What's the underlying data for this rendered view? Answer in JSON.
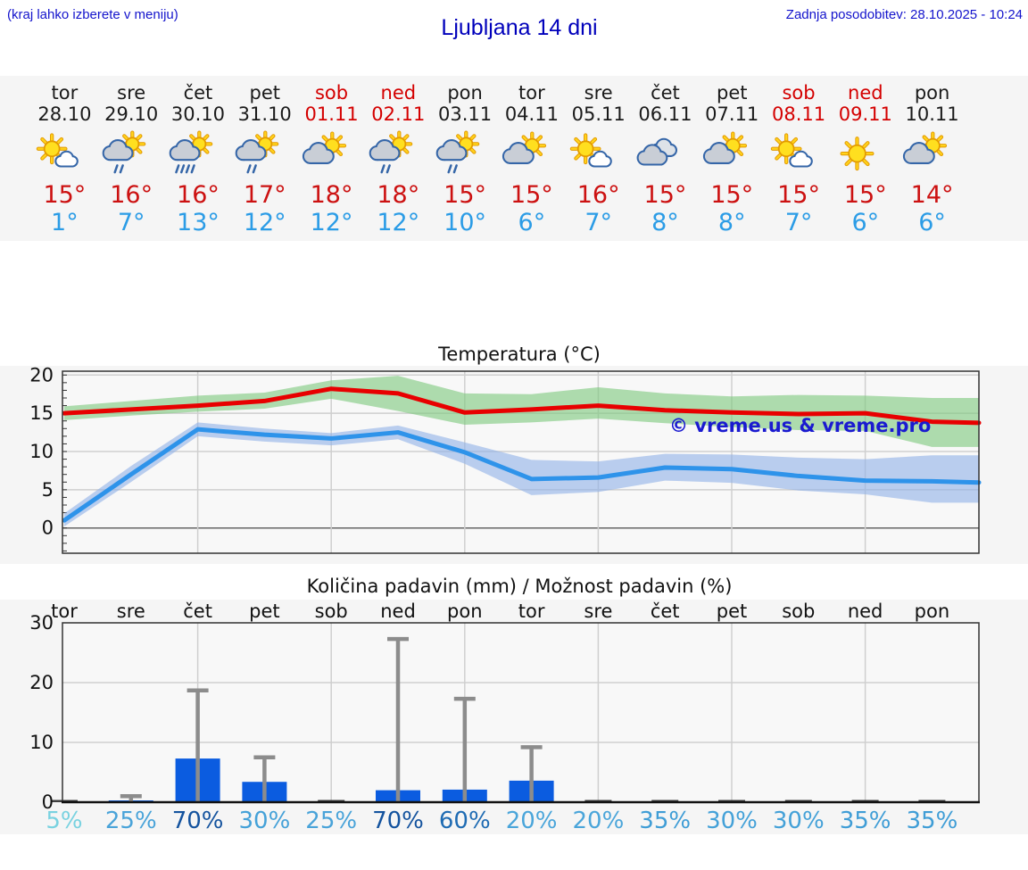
{
  "header": {
    "note_left": "(kraj lahko izberete v meniju)",
    "title": "Ljubljana 14 dni",
    "updated": "Zadnja posodobitev: 28.10.2025 - 10:24"
  },
  "colors": {
    "accent_blue": "#1414cc",
    "temp_max_red": "#e80000",
    "temp_min_blue": "#2e93ea",
    "band_green": "#7cc87c",
    "band_blue": "#8fb0e8",
    "bar_blue": "#0b5ce0",
    "error_gray": "#8c8c8c",
    "weekend_red": "#d40000",
    "strip_bg": "#f5f5f5",
    "plot_bg": "#f8f8f8"
  },
  "days": [
    {
      "name": "tor",
      "date": "28.10",
      "weekend": false,
      "icon": "sun-cloud",
      "tmax": "15°",
      "tmin": "1°",
      "precip_mm": 0.05,
      "precip_err": 0,
      "prob": "5%",
      "prob_color": "#79d2e0"
    },
    {
      "name": "sre",
      "date": "29.10",
      "weekend": false,
      "icon": "cloud-sun-rain",
      "tmax": "16°",
      "tmin": "7°",
      "precip_mm": 0.25,
      "precip_err": 1.0,
      "prob": "25%",
      "prob_color": "#49a3d9"
    },
    {
      "name": "čet",
      "date": "30.10",
      "weekend": false,
      "icon": "cloud-sun-rain-heavy",
      "tmax": "16°",
      "tmin": "13°",
      "precip_mm": 7.3,
      "precip_err": 18.7,
      "prob": "70%",
      "prob_color": "#14539e"
    },
    {
      "name": "pet",
      "date": "31.10",
      "weekend": false,
      "icon": "cloud-sun-rain",
      "tmax": "17°",
      "tmin": "12°",
      "precip_mm": 3.4,
      "precip_err": 7.5,
      "prob": "30%",
      "prob_color": "#44a1d8"
    },
    {
      "name": "sob",
      "date": "01.11",
      "weekend": true,
      "icon": "cloud-sun",
      "tmax": "18°",
      "tmin": "12°",
      "precip_mm": 0.1,
      "precip_err": 0,
      "prob": "25%",
      "prob_color": "#49a3d9"
    },
    {
      "name": "ned",
      "date": "02.11",
      "weekend": true,
      "icon": "cloud-sun-rain",
      "tmax": "18°",
      "tmin": "12°",
      "precip_mm": 2.0,
      "precip_err": 27.3,
      "prob": "70%",
      "prob_color": "#14539e"
    },
    {
      "name": "pon",
      "date": "03.11",
      "weekend": false,
      "icon": "cloud-sun-rain",
      "tmax": "15°",
      "tmin": "10°",
      "precip_mm": 2.1,
      "precip_err": 17.3,
      "prob": "60%",
      "prob_color": "#1e6bb3"
    },
    {
      "name": "tor",
      "date": "04.11",
      "weekend": false,
      "icon": "cloud-sun",
      "tmax": "15°",
      "tmin": "6°",
      "precip_mm": 3.6,
      "precip_err": 9.2,
      "prob": "20%",
      "prob_color": "#4aa5da"
    },
    {
      "name": "sre",
      "date": "05.11",
      "weekend": false,
      "icon": "sun-cloud",
      "tmax": "16°",
      "tmin": "7°",
      "precip_mm": 0.1,
      "precip_err": 0,
      "prob": "20%",
      "prob_color": "#4aa5da"
    },
    {
      "name": "čet",
      "date": "06.11",
      "weekend": false,
      "icon": "clouds",
      "tmax": "15°",
      "tmin": "8°",
      "precip_mm": 0.1,
      "precip_err": 0,
      "prob": "35%",
      "prob_color": "#3f9dd6"
    },
    {
      "name": "pet",
      "date": "07.11",
      "weekend": false,
      "icon": "cloud-sun",
      "tmax": "15°",
      "tmin": "8°",
      "precip_mm": 0.1,
      "precip_err": 0,
      "prob": "30%",
      "prob_color": "#44a1d8"
    },
    {
      "name": "sob",
      "date": "08.11",
      "weekend": true,
      "icon": "sun-cloud",
      "tmax": "15°",
      "tmin": "7°",
      "precip_mm": 0.1,
      "precip_err": 0,
      "prob": "30%",
      "prob_color": "#44a1d8"
    },
    {
      "name": "ned",
      "date": "09.11",
      "weekend": true,
      "icon": "sun",
      "tmax": "15°",
      "tmin": "6°",
      "precip_mm": 0.1,
      "precip_err": 0,
      "prob": "35%",
      "prob_color": "#3f9dd6"
    },
    {
      "name": "pon",
      "date": "10.11",
      "weekend": false,
      "icon": "cloud-sun",
      "tmax": "14°",
      "tmin": "6°",
      "precip_mm": 0.1,
      "precip_err": 0,
      "prob": "35%",
      "prob_color": "#3f9dd6"
    }
  ],
  "chart_data": [
    {
      "type": "line",
      "title": "Temperatura (°C)",
      "watermark": "© vreme.us & vreme.pro",
      "x_categories": [
        "tor 28.10",
        "sre 29.10",
        "čet 30.10",
        "pet 31.10",
        "sob 01.11",
        "ned 02.11",
        "pon 03.11",
        "tor 04.11",
        "sre 05.11",
        "čet 06.11",
        "pet 07.11",
        "sob 08.11",
        "ned 09.11",
        "pon 10.11"
      ],
      "ylim": [
        -3.3,
        20.5
      ],
      "yticks": [
        0,
        5,
        10,
        15,
        20
      ],
      "grid": true,
      "series": [
        {
          "name": "max_temp",
          "color": "#e80000",
          "values": [
            15.0,
            15.5,
            16.0,
            16.6,
            18.2,
            17.6,
            15.1,
            15.5,
            16.0,
            15.4,
            15.1,
            14.9,
            15.0,
            13.9
          ]
        },
        {
          "name": "max_temp_range_hi",
          "color": "#7cc87c",
          "values": [
            15.9,
            16.6,
            17.3,
            17.7,
            19.3,
            19.9,
            17.6,
            17.5,
            18.4,
            17.6,
            17.2,
            17.4,
            17.3,
            17.0
          ]
        },
        {
          "name": "max_temp_range_lo",
          "color": "#7cc87c",
          "values": [
            14.1,
            14.7,
            15.2,
            15.6,
            16.9,
            15.3,
            13.5,
            13.8,
            14.3,
            13.7,
            13.2,
            12.8,
            12.7,
            10.6
          ]
        },
        {
          "name": "min_temp",
          "color": "#2e93ea",
          "values": [
            1.0,
            7.0,
            12.9,
            12.2,
            11.7,
            12.5,
            9.9,
            6.4,
            6.6,
            7.9,
            7.7,
            6.8,
            6.2,
            6.1
          ]
        },
        {
          "name": "min_temp_range_hi",
          "color": "#8fb0e8",
          "values": [
            1.9,
            8.1,
            13.8,
            13.0,
            12.4,
            13.4,
            11.2,
            8.9,
            8.7,
            9.7,
            9.6,
            9.2,
            9.0,
            9.5
          ]
        },
        {
          "name": "min_temp_range_lo",
          "color": "#8fb0e8",
          "values": [
            0.2,
            6.0,
            12.0,
            11.3,
            10.8,
            11.6,
            8.4,
            4.3,
            4.7,
            6.2,
            5.9,
            4.9,
            4.4,
            3.3
          ]
        }
      ]
    },
    {
      "type": "bar",
      "title": "Količina padavin (mm) / Možnost padavin (%)",
      "categories": [
        "tor",
        "sre",
        "čet",
        "pet",
        "sob",
        "ned",
        "pon",
        "tor",
        "sre",
        "čet",
        "pet",
        "sob",
        "ned",
        "pon"
      ],
      "values": [
        0.05,
        0.25,
        7.3,
        3.4,
        0.1,
        2.0,
        2.1,
        3.6,
        0.1,
        0.1,
        0.1,
        0.1,
        0.1,
        0.1
      ],
      "error_max": [
        0,
        1.0,
        18.7,
        7.5,
        0,
        27.3,
        17.3,
        9.2,
        0,
        0,
        0,
        0,
        0,
        0
      ],
      "probabilities": [
        "5%",
        "25%",
        "70%",
        "30%",
        "25%",
        "70%",
        "60%",
        "20%",
        "20%",
        "35%",
        "30%",
        "30%",
        "35%",
        "35%"
      ],
      "ylim": [
        0,
        30
      ],
      "yticks": [
        0,
        10,
        20,
        30
      ],
      "grid": true
    }
  ]
}
